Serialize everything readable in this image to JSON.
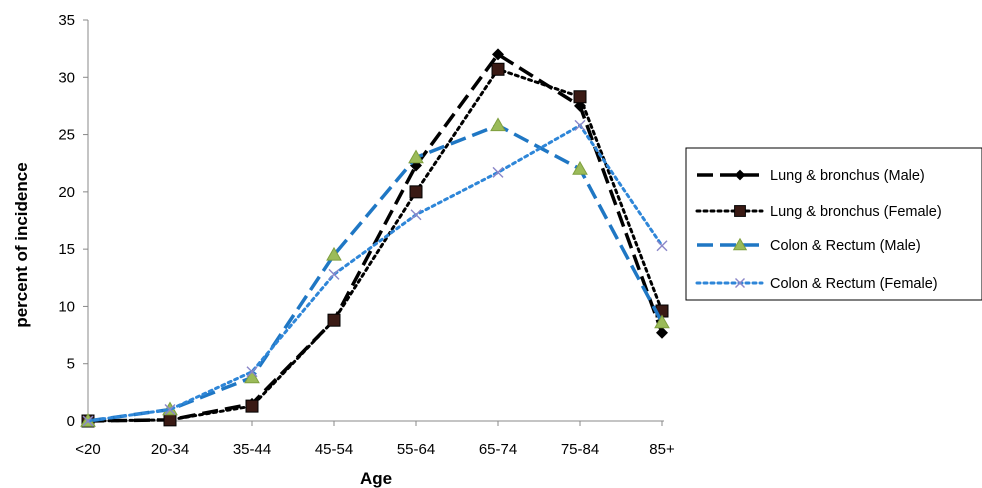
{
  "chart_data": {
    "type": "line",
    "title": "",
    "xlabel": "Age",
    "ylabel": "percent of incidence",
    "categories": [
      "<20",
      "20-34",
      "35-44",
      "45-54",
      "55-64",
      "65-74",
      "75-84",
      "85+"
    ],
    "ylim": [
      0,
      35
    ],
    "yticks": [
      0,
      5,
      10,
      15,
      20,
      25,
      30,
      35
    ],
    "grid": false,
    "legend_position": "right",
    "series": [
      {
        "name": "Lung & bronchus (Male)",
        "values": [
          0,
          0.1,
          1.5,
          8.8,
          22.3,
          32.0,
          27.5,
          7.7
        ],
        "color": "#000000",
        "dash": "long-dash",
        "marker": "diamond"
      },
      {
        "name": "Lung & bronchus (Female)",
        "values": [
          0,
          0.1,
          1.3,
          8.8,
          20.0,
          30.7,
          28.3,
          9.6
        ],
        "color": "#000000",
        "dash": "dot",
        "marker": "square"
      },
      {
        "name": "Colon & Rectum (Male)",
        "values": [
          0,
          1.0,
          3.8,
          14.5,
          23.0,
          25.8,
          22.0,
          8.6
        ],
        "color": "#1f77c4",
        "dash": "long-dash",
        "marker": "triangle"
      },
      {
        "name": "Colon & Rectum (Female)",
        "values": [
          0,
          1.0,
          4.3,
          12.8,
          18.0,
          21.7,
          25.8,
          15.3
        ],
        "color": "#2e86d8",
        "dash": "dot",
        "marker": "x"
      }
    ]
  }
}
